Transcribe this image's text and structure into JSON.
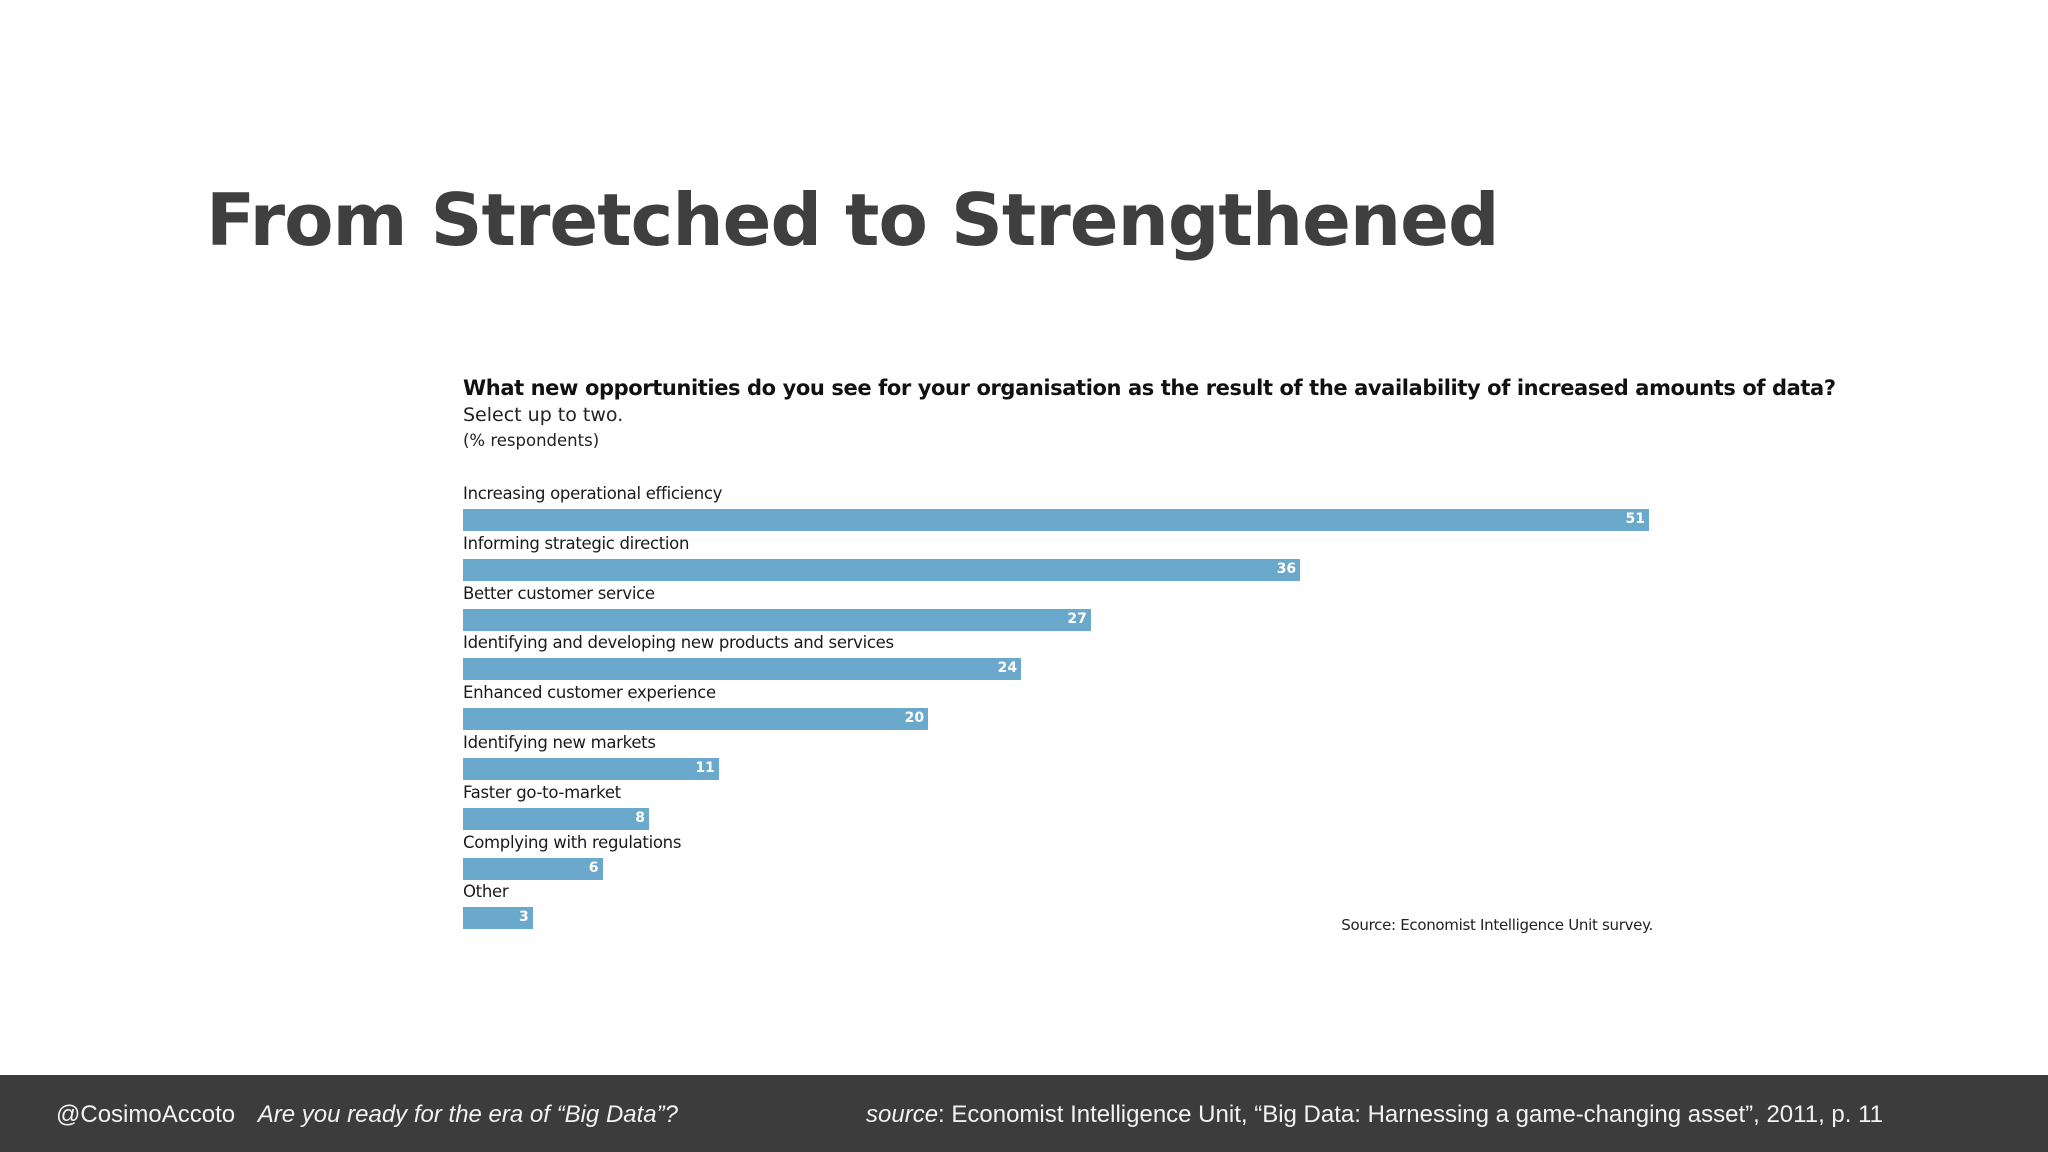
{
  "slide": {
    "title": "From Stretched to Strengthened"
  },
  "footer": {
    "handle": "@CosimoAccoto",
    "talk_title": "Are you ready for the era of “Big Data”?",
    "source_label": "source",
    "source_text": ":  Economist Intelligence Unit, “Big Data: Harnessing a game-changing asset”, 2011, p. 11"
  },
  "colors": {
    "bar": "#6aa9cb",
    "footer_bg": "#3c3c3c",
    "title": "#3f3f3f"
  },
  "chart_data": {
    "type": "bar",
    "orientation": "horizontal",
    "title": "What new opportunities do you see for your organisation as the result of the availability of increased amounts of data?",
    "subtitle": "Select up to two.",
    "units": "(% respondents)",
    "source": "Source: Economist Intelligence Unit survey.",
    "categories": [
      "Increasing operational efficiency",
      "Informing strategic direction",
      "Better customer service",
      "Identifying and developing new products and services",
      "Enhanced customer experience",
      "Identifying new markets",
      "Faster go-to-market",
      "Complying with regulations",
      "Other"
    ],
    "values": [
      51,
      36,
      27,
      24,
      20,
      11,
      8,
      6,
      3
    ],
    "xlim": [
      0,
      51
    ],
    "grid": false,
    "legend": "none"
  }
}
